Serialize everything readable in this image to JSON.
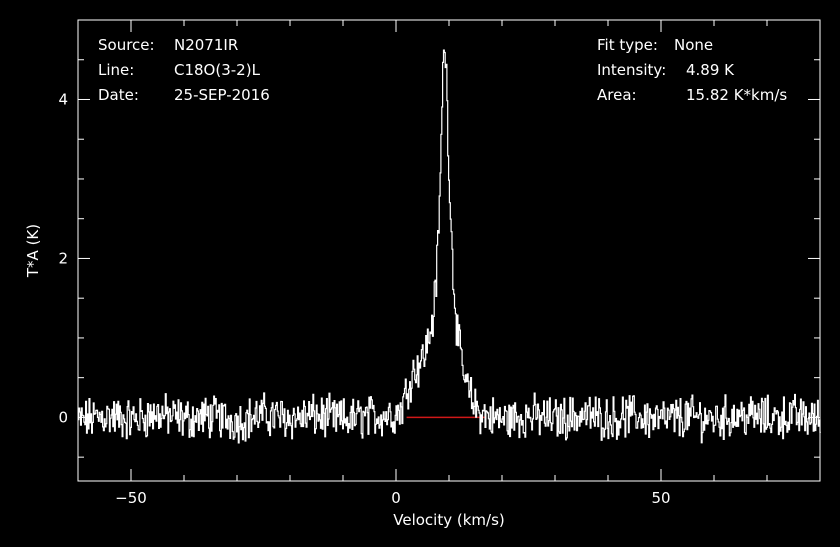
{
  "header": {
    "source_label": "Source:",
    "source_value": "N2071IR",
    "line_label": "Line:",
    "line_value": "C18O(3-2)L",
    "date_label": "Date:",
    "date_value": "25-SEP-2016",
    "fit_label": "Fit type:",
    "fit_value": "None",
    "intensity_label": "Intensity:",
    "intensity_value": "4.89 K",
    "area_label": "Area:",
    "area_value": "15.82 K*km/s"
  },
  "chart_data": {
    "type": "line",
    "xlabel": "Velocity (km/s)",
    "ylabel": "T*A (K)",
    "xlim": [
      -60,
      80
    ],
    "ylim": [
      -0.8,
      5.0
    ],
    "xticks": [
      -50,
      0,
      50
    ],
    "yticks": [
      0,
      2,
      4
    ],
    "grid": false,
    "baseline_range": [
      2,
      17
    ],
    "colors": {
      "background": "#000000",
      "axes": "#ffffff",
      "spectrum": "#ffffff",
      "baseline": "#d01818"
    },
    "series": [
      {
        "name": "spectrum",
        "x": [
          -60,
          -55,
          -50,
          -45,
          -40,
          -35,
          -30,
          -25,
          -20,
          -15,
          -10,
          -5,
          0,
          1,
          2,
          3,
          4,
          5,
          6,
          7,
          7.5,
          8,
          8.5,
          9,
          9.5,
          10,
          10.5,
          11,
          11.5,
          12,
          13,
          14,
          15,
          16,
          17,
          18,
          20,
          25,
          30,
          35,
          40,
          45,
          50,
          55,
          60,
          65,
          70,
          75,
          80
        ],
        "y": [
          -0.05,
          0.02,
          -0.03,
          0.04,
          -0.02,
          0.01,
          -0.04,
          0.03,
          -0.01,
          0.02,
          -0.03,
          0.01,
          0.05,
          0.12,
          0.35,
          0.55,
          0.65,
          0.75,
          0.95,
          1.3,
          1.7,
          2.4,
          3.5,
          4.89,
          4.2,
          3.0,
          2.1,
          1.5,
          1.1,
          0.8,
          0.45,
          0.25,
          0.12,
          0.05,
          0.02,
          0.0,
          -0.03,
          0.02,
          -0.02,
          0.03,
          -0.01,
          0.02,
          -0.03,
          0.01,
          -0.02,
          0.03,
          -0.01,
          0.02,
          -0.03
        ]
      }
    ]
  }
}
